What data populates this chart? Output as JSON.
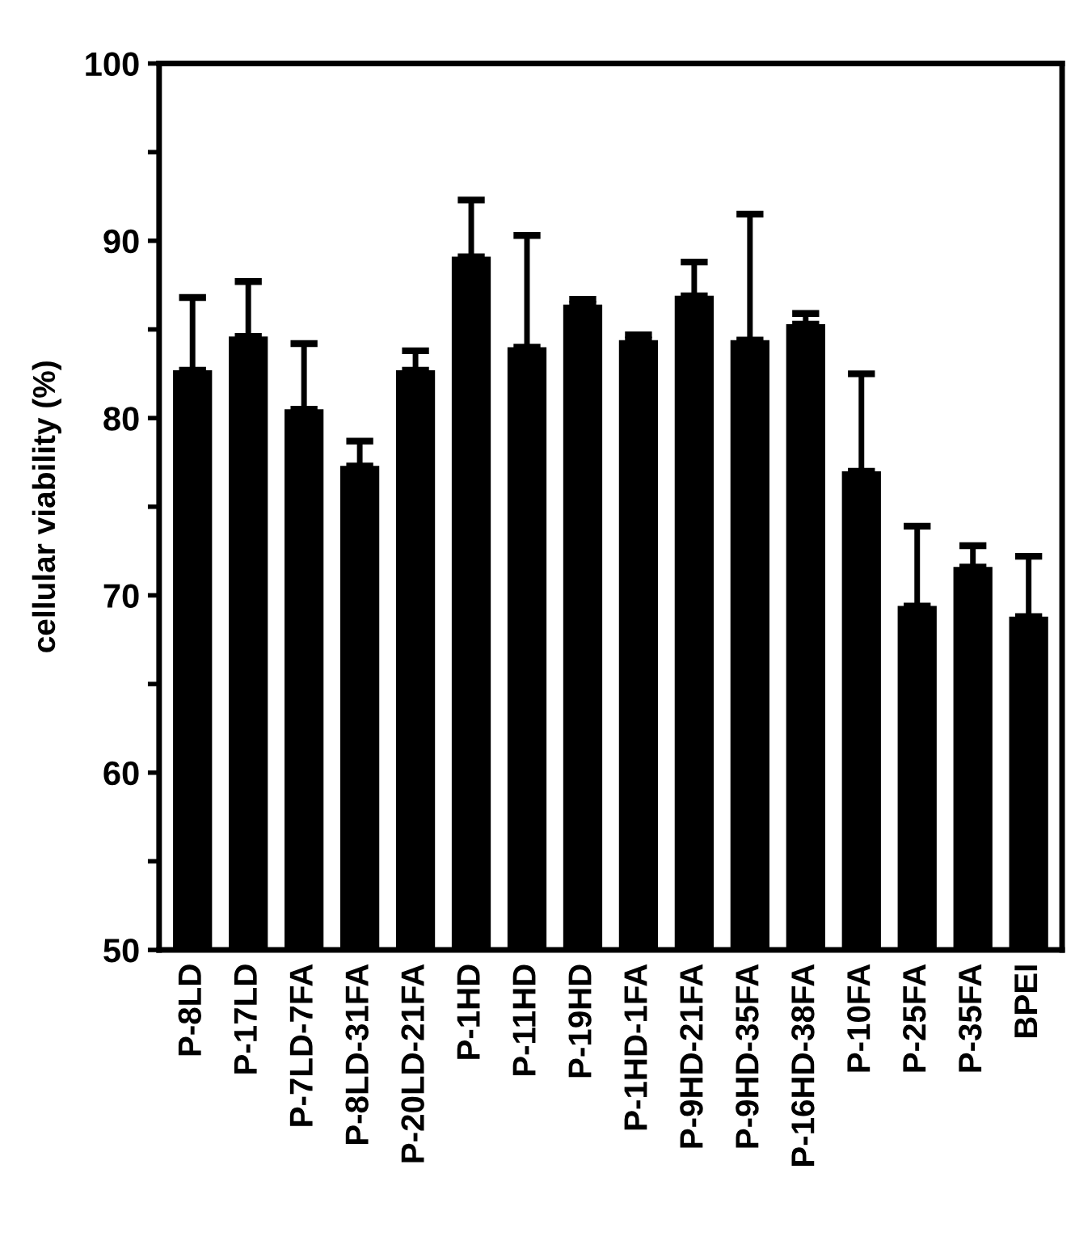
{
  "chart_data": {
    "type": "bar",
    "ylabel": "cellular viability (%)",
    "categories": [
      "P-8LD",
      "P-17LD",
      "P-7LD-7FA",
      "P-8LD-31FA",
      "P-20LD-21FA",
      "P-1HD",
      "P-11HD",
      "P-19HD",
      "P-1HD-1FA",
      "P-9HD-21FA",
      "P-9HD-35FA",
      "P-16HD-38FA",
      "P-10FA",
      "P-25FA",
      "P-35FA",
      "BPEI"
    ],
    "values": [
      82.7,
      84.6,
      80.5,
      77.3,
      82.7,
      89.1,
      84.0,
      86.4,
      84.4,
      86.9,
      84.4,
      85.3,
      77.0,
      69.4,
      71.6,
      68.8
    ],
    "errors": [
      [
        82.7,
        86.8
      ],
      [
        84.6,
        87.7
      ],
      [
        80.5,
        84.2
      ],
      [
        77.3,
        78.7
      ],
      [
        82.7,
        83.8
      ],
      [
        89.1,
        92.3
      ],
      [
        84.0,
        90.3
      ],
      [
        86.4,
        86.7
      ],
      [
        84.4,
        84.7
      ],
      [
        86.9,
        88.8
      ],
      [
        84.4,
        91.5
      ],
      [
        85.3,
        85.9
      ],
      [
        77.0,
        82.5
      ],
      [
        69.4,
        73.9
      ],
      [
        71.6,
        72.8
      ],
      [
        68.8,
        72.2
      ]
    ],
    "color": "#000000",
    "ylim": [
      50,
      100
    ],
    "yticks": [
      50,
      {
        "value": 55,
        "label": null
      },
      60,
      {
        "value": 65,
        "label": null
      },
      70,
      {
        "value": 75,
        "label": null
      },
      80,
      {
        "value": 85,
        "label": null
      },
      90,
      {
        "value": 95,
        "label": null
      },
      100
    ],
    "grid": false
  }
}
